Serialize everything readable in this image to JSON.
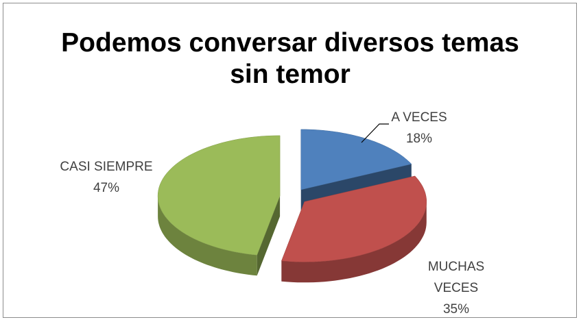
{
  "chart_data": {
    "type": "pie3d",
    "title": "Podemos conversar diversos temas sin temor",
    "categories": [
      "A VECES",
      "MUCHAS VECES",
      "CASI SIEMPRE"
    ],
    "values": [
      18,
      35,
      47
    ],
    "value_labels": [
      "18%",
      "35%",
      "47%"
    ],
    "colors": [
      "#4f81bd",
      "#c0504d",
      "#9bbb59"
    ],
    "legend": false
  }
}
